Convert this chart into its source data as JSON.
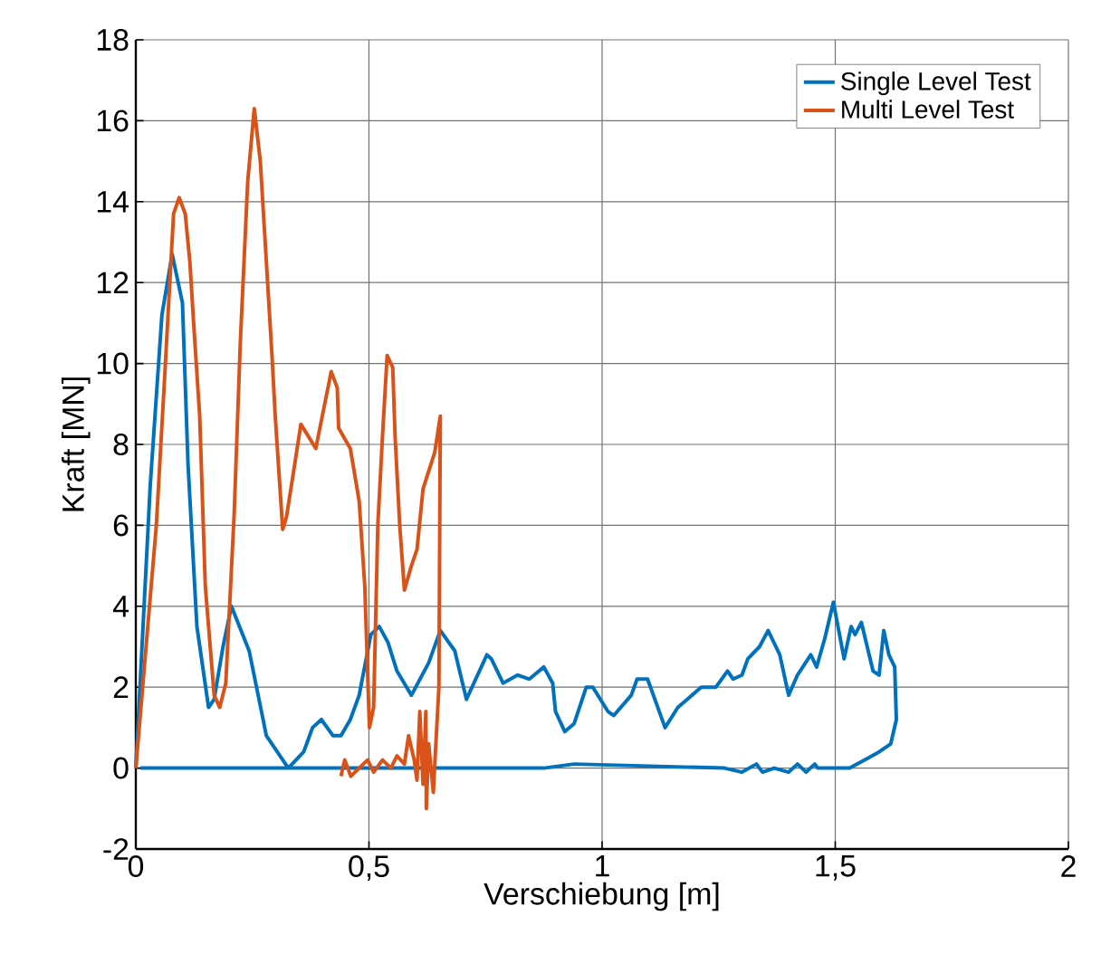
{
  "chart_data": {
    "type": "line",
    "xlabel": "Verschiebung [m]",
    "ylabel": "Kraft [MN]",
    "xlim": [
      0,
      2
    ],
    "ylim": [
      -2,
      18
    ],
    "xticks": [
      0,
      {
        "value": 0.5,
        "label": "0,5"
      },
      1,
      {
        "value": 1.5,
        "label": "1,5"
      },
      2
    ],
    "yticks": [
      -2,
      0,
      2,
      4,
      6,
      8,
      10,
      12,
      14,
      16,
      18
    ],
    "grid": true,
    "legend": "top right",
    "line_style": "solid",
    "series": [
      {
        "name": "Single Level Test",
        "color": "#0072bd",
        "x": [
          0,
          0.031,
          0.056,
          0.078,
          0.1,
          0.112,
          0.131,
          0.156,
          0.168,
          0.187,
          0.205,
          0.243,
          0.28,
          0.327,
          0.36,
          0.379,
          0.398,
          0.423,
          0.44,
          0.46,
          0.479,
          0.504,
          0.522,
          0.541,
          0.56,
          0.591,
          0.628,
          0.653,
          0.684,
          0.709,
          0.753,
          0.7625,
          0.7875,
          0.819,
          0.844,
          0.875,
          0.894,
          0.9,
          0.92,
          0.94,
          0.966,
          0.98,
          1.0125,
          1.025,
          1.0625,
          1.075,
          1.0975,
          1.135,
          1.1625,
          1.2125,
          1.244,
          1.269,
          1.281,
          1.3,
          1.3125,
          1.3375,
          1.356,
          1.381,
          1.4,
          1.419,
          1.4475,
          1.46,
          1.4775,
          1.496,
          1.519,
          1.534,
          1.5425,
          1.556,
          1.581,
          1.594,
          1.604,
          1.615,
          1.6275,
          1.631,
          1.619,
          1.594,
          1.5625,
          1.531,
          1.4625,
          1.456,
          1.4375,
          1.419,
          1.4,
          1.369,
          1.344,
          1.331,
          1.3,
          1.2625,
          0.94,
          0.875,
          0.01
        ],
        "values": [
          0,
          7,
          11.2,
          12.7,
          11.5,
          7.5,
          3.5,
          1.5,
          1.7,
          3,
          4,
          2.9,
          0.8,
          0,
          0.4,
          1,
          1.2,
          0.8,
          0.8,
          1.2,
          1.8,
          3.3,
          3.5,
          3.1,
          2.4,
          1.8,
          2.6,
          3.4,
          2.9,
          1.7,
          2.8,
          2.7,
          2.1,
          2.3,
          2.2,
          2.5,
          2.1,
          1.4,
          0.9,
          1.1,
          2,
          2,
          1.4,
          1.3,
          1.8,
          2.2,
          2.2,
          1,
          1.5,
          2,
          2,
          2.4,
          2.2,
          2.3,
          2.7,
          3,
          3.4,
          2.8,
          1.8,
          2.3,
          2.8,
          2.5,
          3.2,
          4.1,
          2.7,
          3.5,
          3.3,
          3.6,
          2.4,
          2.3,
          3.4,
          2.8,
          2.5,
          1.2,
          0.6,
          0.4,
          0.2,
          0,
          0,
          0.1,
          -0.1,
          0.1,
          -0.1,
          0,
          -0.1,
          0.1,
          -0.1,
          0,
          0.1,
          0,
          0
        ]
      },
      {
        "name": "Multi Level Test",
        "color": "#d95319",
        "x": [
          0,
          0.044,
          0.062,
          0.081,
          0.093,
          0.106,
          0.116,
          0.124,
          0.137,
          0.149,
          0.168,
          0.18,
          0.193,
          0.211,
          0.224,
          0.24,
          0.254,
          0.267,
          0.292,
          0.299,
          0.315,
          0.323,
          0.342,
          0.354,
          0.386,
          0.419,
          0.432,
          0.435,
          0.46,
          0.479,
          0.491,
          0.501,
          0.51,
          0.519,
          0.529,
          0.539,
          0.551,
          0.556,
          0.566,
          0.576,
          0.591,
          0.603,
          0.616,
          0.641,
          0.653,
          0.65,
          0.643,
          0.638,
          0.628,
          0.623,
          0.622,
          0.616,
          0.609,
          0.603,
          0.597,
          0.585,
          0.576,
          0.56,
          0.547,
          0.529,
          0.51,
          0.497,
          0.479,
          0.461,
          0.448,
          0.44
        ],
        "values": [
          0,
          6,
          9.7,
          13.7,
          14.1,
          13.7,
          12.5,
          11,
          8.7,
          4.5,
          1.8,
          1.5,
          2.1,
          6.3,
          10.5,
          14.5,
          16.3,
          15,
          10.2,
          8.7,
          5.9,
          6.2,
          7.6,
          8.5,
          7.9,
          9.8,
          9.4,
          8.4,
          7.9,
          6.6,
          4.5,
          1,
          1.5,
          6,
          8.2,
          10.2,
          9.9,
          8.2,
          6,
          4.4,
          5,
          5.4,
          6.9,
          7.8,
          8.7,
          2,
          0.5,
          -0.6,
          0.6,
          -1,
          1.4,
          -0.4,
          1.4,
          -0.3,
          0.2,
          0.8,
          0.1,
          0.3,
          0,
          0.2,
          -0.1,
          0.2,
          0,
          -0.2,
          0.2,
          -0.2
        ]
      }
    ]
  }
}
